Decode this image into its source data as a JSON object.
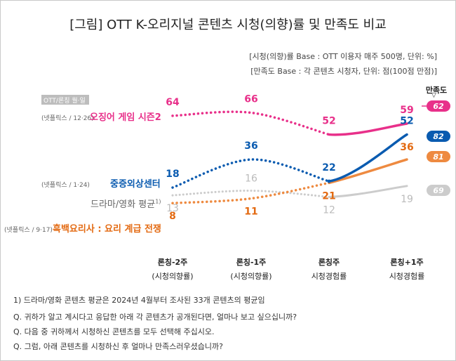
{
  "title": "[그림]  OTT K-오리지널 콘텐츠 시청(의향)률 및 만족도 비교",
  "notes": [
    "[시청(의향)률 Base : OTT 이용자 매주 500명, 단위: %]",
    "[만족도 Base : 각 콘텐츠 시청자, 단위: 점(100점 만점)]"
  ],
  "header_labels": {
    "ott_release": "OTT/론칭 월·일",
    "satisfaction": "만족도",
    "satisfaction_arrow": "▽"
  },
  "chart_data": {
    "type": "line",
    "categories": [
      {
        "main": "론칭-2주",
        "sub": "(시청의향률)"
      },
      {
        "main": "론칭-1주",
        "sub": "(시청의향률)"
      },
      {
        "main": "론칭주",
        "sub": "시청경험률"
      },
      {
        "main": "론칭+1주",
        "sub": "시청경험률"
      }
    ],
    "series": [
      {
        "name": "오징어 게임 시즌2",
        "meta": "(넷플릭스 / 12·26)",
        "color": "#e8308a",
        "values": [
          64,
          66,
          52,
          59
        ],
        "satisfaction": "62",
        "bold": true
      },
      {
        "name": "중증외상센터",
        "meta": "(넷플릭스 / 1·24)",
        "color": "#0a5bb0",
        "values": [
          18,
          36,
          22,
          52
        ],
        "satisfaction": "82",
        "bold": true
      },
      {
        "name": "드라마/영화 평균",
        "footnote_mark": "1)",
        "meta": "",
        "color": "#cccccc",
        "label_color": "#666666",
        "value_color": "#bbbbbb",
        "values": [
          13,
          16,
          12,
          19
        ],
        "satisfaction": "69",
        "bold": false
      },
      {
        "name": "흑백요리사 : 요리 계급 전쟁",
        "meta": "(넷플릭스 / 9·17)",
        "color": "#ee8a40",
        "label_color": "#e36a12",
        "value_color": "#e36a12",
        "values": [
          8,
          11,
          21,
          36
        ],
        "satisfaction": "81",
        "bold": true
      }
    ]
  },
  "footnotes": [
    "1) 드라마/영화 콘텐츠 평균은 2024년 4월부터 조사된 33개 콘텐츠의 평균임",
    "Q. 귀하가 알고 계시다고 응답한 아래 각 콘텐츠가 공개된다면, 얼마나 보고 싶으십니까?",
    "Q. 다음 중 귀하께서 시청하신 콘텐츠를 모두 선택해 주십시오.",
    "Q. 그럼, 아래 콘텐츠를 시청하신 후 얼마나 만족스러우셨습니까?"
  ]
}
